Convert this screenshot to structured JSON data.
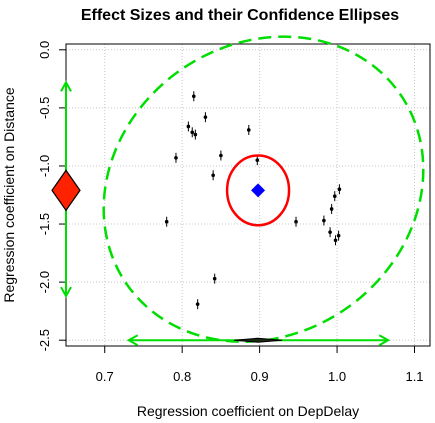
{
  "chart_data": {
    "type": "scatter",
    "title": "Effect Sizes and their Confidence Ellipses",
    "xlabel": "Regression coefficient on DepDelay",
    "ylabel": "Regression coefficient on Distance",
    "xlim": [
      0.65,
      1.12
    ],
    "ylim": [
      -2.55,
      0.05
    ],
    "x_ticks": [
      "0.7",
      "0.8",
      "0.9",
      "1.0",
      "1.1"
    ],
    "x_tick_values": [
      0.7,
      0.8,
      0.9,
      1.0,
      1.1
    ],
    "y_ticks": [
      "0.0",
      "-0.5",
      "-1.0",
      "-1.5",
      "-2.0",
      "-2.5"
    ],
    "y_tick_values": [
      0.0,
      -0.5,
      -1.0,
      -1.5,
      -2.0,
      -2.5
    ],
    "grid": true,
    "colors": {
      "points": "#000000",
      "estimate": "#0000ff",
      "inner_ellipse": "#ff0000",
      "outer_ellipse": "#00dd00",
      "marginal_x": "#00dd00",
      "marginal_y": "#00dd00",
      "marginal_diamond": "#ff2200"
    },
    "points": [
      {
        "x": 0.815,
        "y": -0.4
      },
      {
        "x": 0.83,
        "y": -0.58
      },
      {
        "x": 0.808,
        "y": -0.66
      },
      {
        "x": 0.813,
        "y": -0.71
      },
      {
        "x": 0.817,
        "y": -0.73
      },
      {
        "x": 0.886,
        "y": -0.69
      },
      {
        "x": 0.792,
        "y": -0.93
      },
      {
        "x": 0.85,
        "y": -0.91
      },
      {
        "x": 0.897,
        "y": -0.95
      },
      {
        "x": 0.84,
        "y": -1.08
      },
      {
        "x": 0.997,
        "y": -1.26
      },
      {
        "x": 1.003,
        "y": -1.2
      },
      {
        "x": 0.993,
        "y": -1.37
      },
      {
        "x": 0.947,
        "y": -1.48
      },
      {
        "x": 0.983,
        "y": -1.47
      },
      {
        "x": 0.991,
        "y": -1.57
      },
      {
        "x": 0.998,
        "y": -1.64
      },
      {
        "x": 1.002,
        "y": -1.6
      },
      {
        "x": 0.78,
        "y": -1.48
      },
      {
        "x": 0.842,
        "y": -1.97
      },
      {
        "x": 0.82,
        "y": -2.19
      }
    ],
    "estimate": {
      "x": 0.898,
      "y": -1.21
    },
    "inner_ellipse": {
      "cx": 0.898,
      "cy": -1.21,
      "rx": 0.04,
      "ry": 0.3
    },
    "outer_ellipse": {
      "cx": 0.905,
      "cy": -1.2,
      "rx": 0.215,
      "ry": 1.25,
      "tilt_deg": 35
    },
    "marginal_x": {
      "x0": 0.731,
      "x1": 1.066,
      "y": -2.5
    },
    "marginal_y": {
      "y0": -0.28,
      "y1": -2.12,
      "x": 0.65
    },
    "marginal_diamond_y": -1.21
  }
}
